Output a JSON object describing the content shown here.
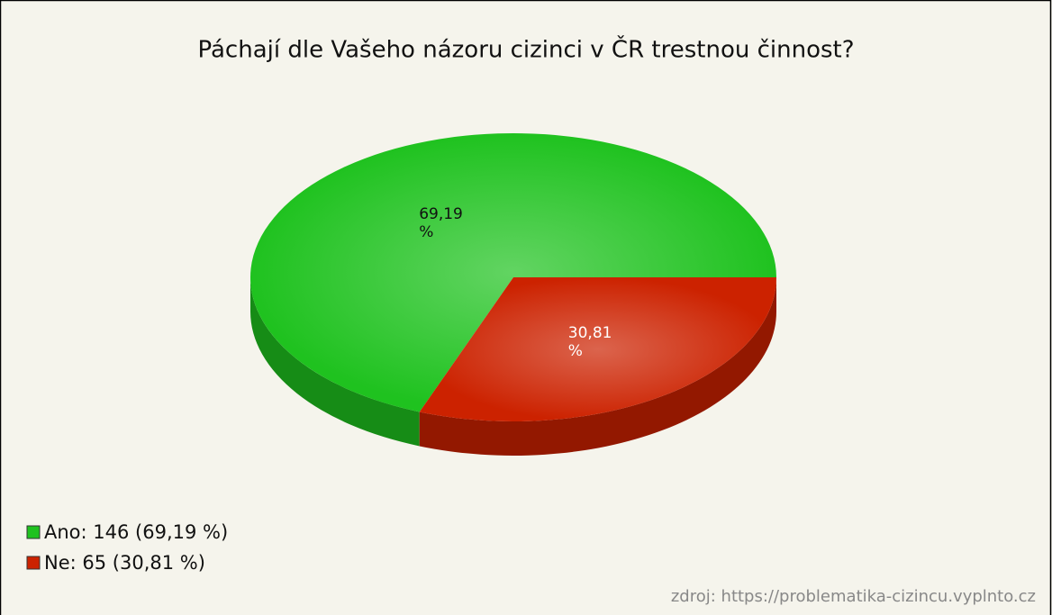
{
  "chart_data": {
    "type": "pie",
    "title": "Páchají dle Vašeho názoru cizinci v ČR trestnou činnost?",
    "categories": [
      "Ano: 146 (69,19 %)",
      "Ne: 65 (30,81 %)"
    ],
    "values": [
      69.19,
      30.81
    ],
    "value_labels": [
      "69,19 %",
      "30,81 %"
    ],
    "colors": [
      "#1fc21f",
      "#cc2200"
    ],
    "legend": "bottom-left",
    "source": "zdroj: https://problematika-cizincu.vyplnto.cz"
  }
}
